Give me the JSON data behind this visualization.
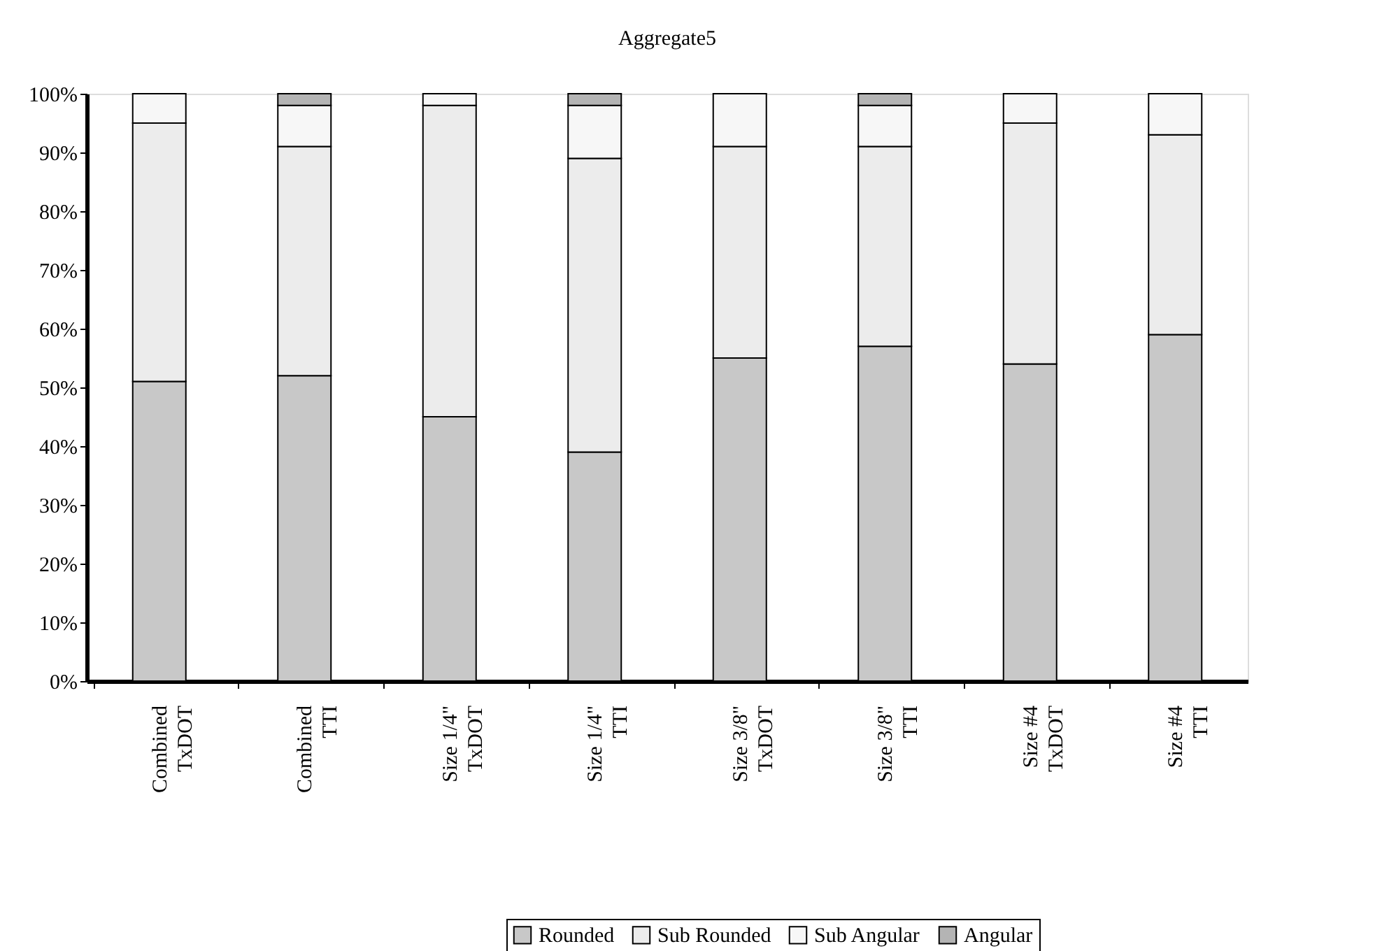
{
  "chart_data": {
    "type": "bar",
    "title": "Aggregate5",
    "stacked": true,
    "categories": [
      "Combined TxDOT",
      "Combined TTI",
      "Size 1/4\" TxDOT",
      "Size 1/4\" TTI",
      "Size 3/8\" TxDOT",
      "Size 3/8\" TTI",
      "Size #4 TxDOT",
      "Size #4 TTI"
    ],
    "series": [
      {
        "name": "Rounded",
        "color": "#c8c8c8",
        "values": [
          51,
          52,
          45,
          39,
          55,
          57,
          54,
          59
        ]
      },
      {
        "name": "Sub Rounded",
        "color": "#ececec",
        "values": [
          44,
          39,
          53,
          50,
          36,
          34,
          41,
          34
        ]
      },
      {
        "name": "Sub Angular",
        "color": "#f7f7f7",
        "values": [
          5,
          7,
          2,
          9,
          9,
          7,
          5,
          7
        ]
      },
      {
        "name": "Angular",
        "color": "#b4b4b4",
        "values": [
          null,
          2,
          null,
          2,
          null,
          2,
          null,
          null
        ]
      }
    ],
    "ylim": [
      0,
      100
    ],
    "yticks": [
      {
        "value": 0,
        "label": "0%"
      },
      {
        "value": 10,
        "label": "10%"
      },
      {
        "value": 20,
        "label": "20%"
      },
      {
        "value": 30,
        "label": "30%"
      },
      {
        "value": 40,
        "label": "40%"
      },
      {
        "value": 50,
        "label": "50%"
      },
      {
        "value": 60,
        "label": "60%"
      },
      {
        "value": 70,
        "label": "70%"
      },
      {
        "value": 80,
        "label": "80%"
      },
      {
        "value": 90,
        "label": "90%"
      },
      {
        "value": 100,
        "label": "100%"
      }
    ],
    "grid": false,
    "legend": "bottom"
  }
}
